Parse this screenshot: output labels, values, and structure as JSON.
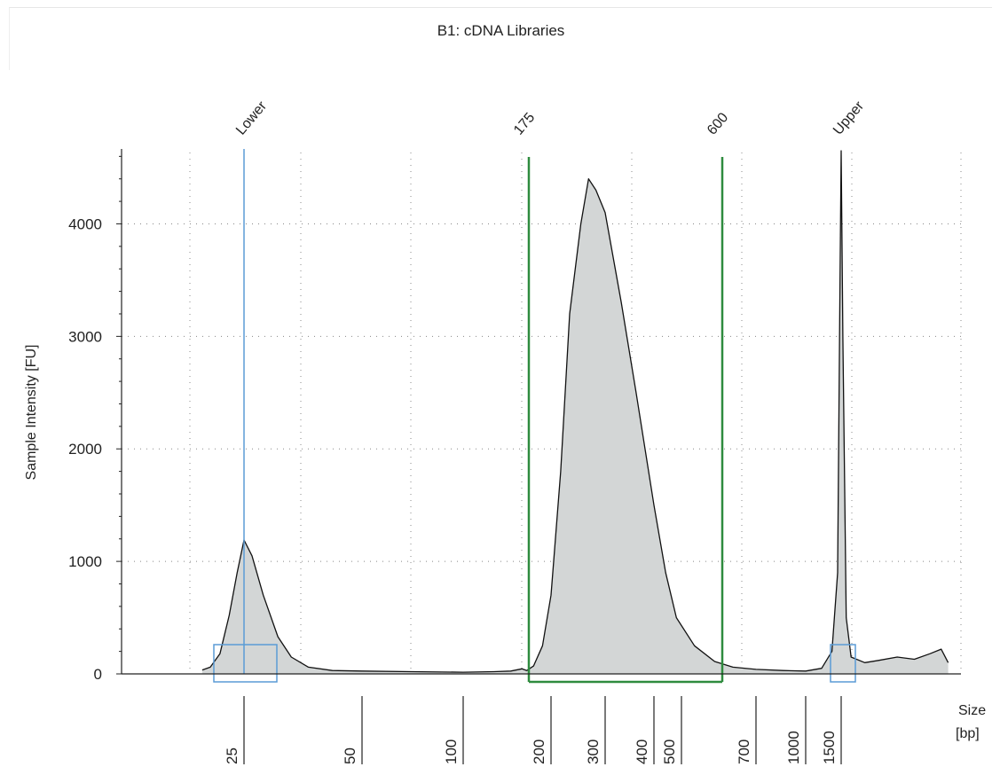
{
  "header": {
    "title": "B1: cDNA Libraries"
  },
  "chart_data": {
    "type": "area",
    "title": "B1: cDNA Libraries",
    "ylabel": "Sample Intensity [FU]",
    "xlabel_line1": "Size",
    "xlabel_line2": "[bp]",
    "ylim": [
      0,
      4600
    ],
    "y_ticks": [
      0,
      1000,
      2000,
      3000,
      4000
    ],
    "grid": true,
    "x_axis_scale": "ladder (non-linear)",
    "x_ticks": [
      {
        "label": "25",
        "bp": 25
      },
      {
        "label": "50",
        "bp": 50
      },
      {
        "label": "100",
        "bp": 100
      },
      {
        "label": "200",
        "bp": 200
      },
      {
        "label": "300",
        "bp": 300
      },
      {
        "label": "400",
        "bp": 400
      },
      {
        "label": "500",
        "bp": 500
      },
      {
        "label": "700",
        "bp": 700
      },
      {
        "label": "1000",
        "bp": 1000
      },
      {
        "label": "1500",
        "bp": 1500
      }
    ],
    "markers": [
      {
        "label": "Lower",
        "bp": 25,
        "color": "#5b9bd5",
        "kind": "ladder-marker"
      },
      {
        "label": "175",
        "bp": 175,
        "color": "#3aa03a",
        "kind": "region-bound"
      },
      {
        "label": "600",
        "bp": 600,
        "color": "#3aa03a",
        "kind": "region-bound"
      },
      {
        "label": "Upper",
        "bp": 1500,
        "color": "#333333",
        "kind": "ladder-marker"
      }
    ],
    "region": {
      "from_bp": 175,
      "to_bp": 600,
      "color": "#2e8b3e"
    },
    "series": [
      {
        "fill": "#d3d6d6",
        "stroke": "#111111",
        "points": [
          [
            20.5,
            35
          ],
          [
            21.3,
            60
          ],
          [
            22.3,
            180
          ],
          [
            23.3,
            520
          ],
          [
            24.2,
            900
          ],
          [
            25,
            1190
          ],
          [
            26.2,
            1050
          ],
          [
            28,
            700
          ],
          [
            30.5,
            330
          ],
          [
            33,
            150
          ],
          [
            36.5,
            60
          ],
          [
            42,
            30
          ],
          [
            50,
            25
          ],
          [
            70,
            20
          ],
          [
            100,
            15
          ],
          [
            130,
            20
          ],
          [
            150,
            25
          ],
          [
            165,
            45
          ],
          [
            172,
            30
          ],
          [
            180,
            70
          ],
          [
            190,
            250
          ],
          [
            200,
            700
          ],
          [
            215,
            1800
          ],
          [
            230,
            3200
          ],
          [
            250,
            4000
          ],
          [
            265,
            4400
          ],
          [
            280,
            4300
          ],
          [
            300,
            4100
          ],
          [
            330,
            3300
          ],
          [
            360,
            2500
          ],
          [
            400,
            1500
          ],
          [
            440,
            900
          ],
          [
            480,
            500
          ],
          [
            530,
            250
          ],
          [
            580,
            110
          ],
          [
            630,
            60
          ],
          [
            700,
            40
          ],
          [
            850,
            30
          ],
          [
            1000,
            25
          ],
          [
            1200,
            50
          ],
          [
            1350,
            200
          ],
          [
            1440,
            900
          ],
          [
            1480,
            3500
          ],
          [
            1500,
            4650
          ],
          [
            1520,
            3000
          ],
          [
            1560,
            500
          ],
          [
            1620,
            150
          ],
          [
            1800,
            100
          ],
          [
            2000,
            120
          ],
          [
            2200,
            150
          ],
          [
            2400,
            130
          ],
          [
            2600,
            180
          ],
          [
            2750,
            220
          ],
          [
            2850,
            100
          ]
        ]
      }
    ]
  },
  "colors": {
    "lower_marker": "#5b9bd5",
    "region": "#2e8b3e",
    "region_label": "#3aa03a",
    "fill": "#d3d6d6",
    "grid": "#888888"
  }
}
